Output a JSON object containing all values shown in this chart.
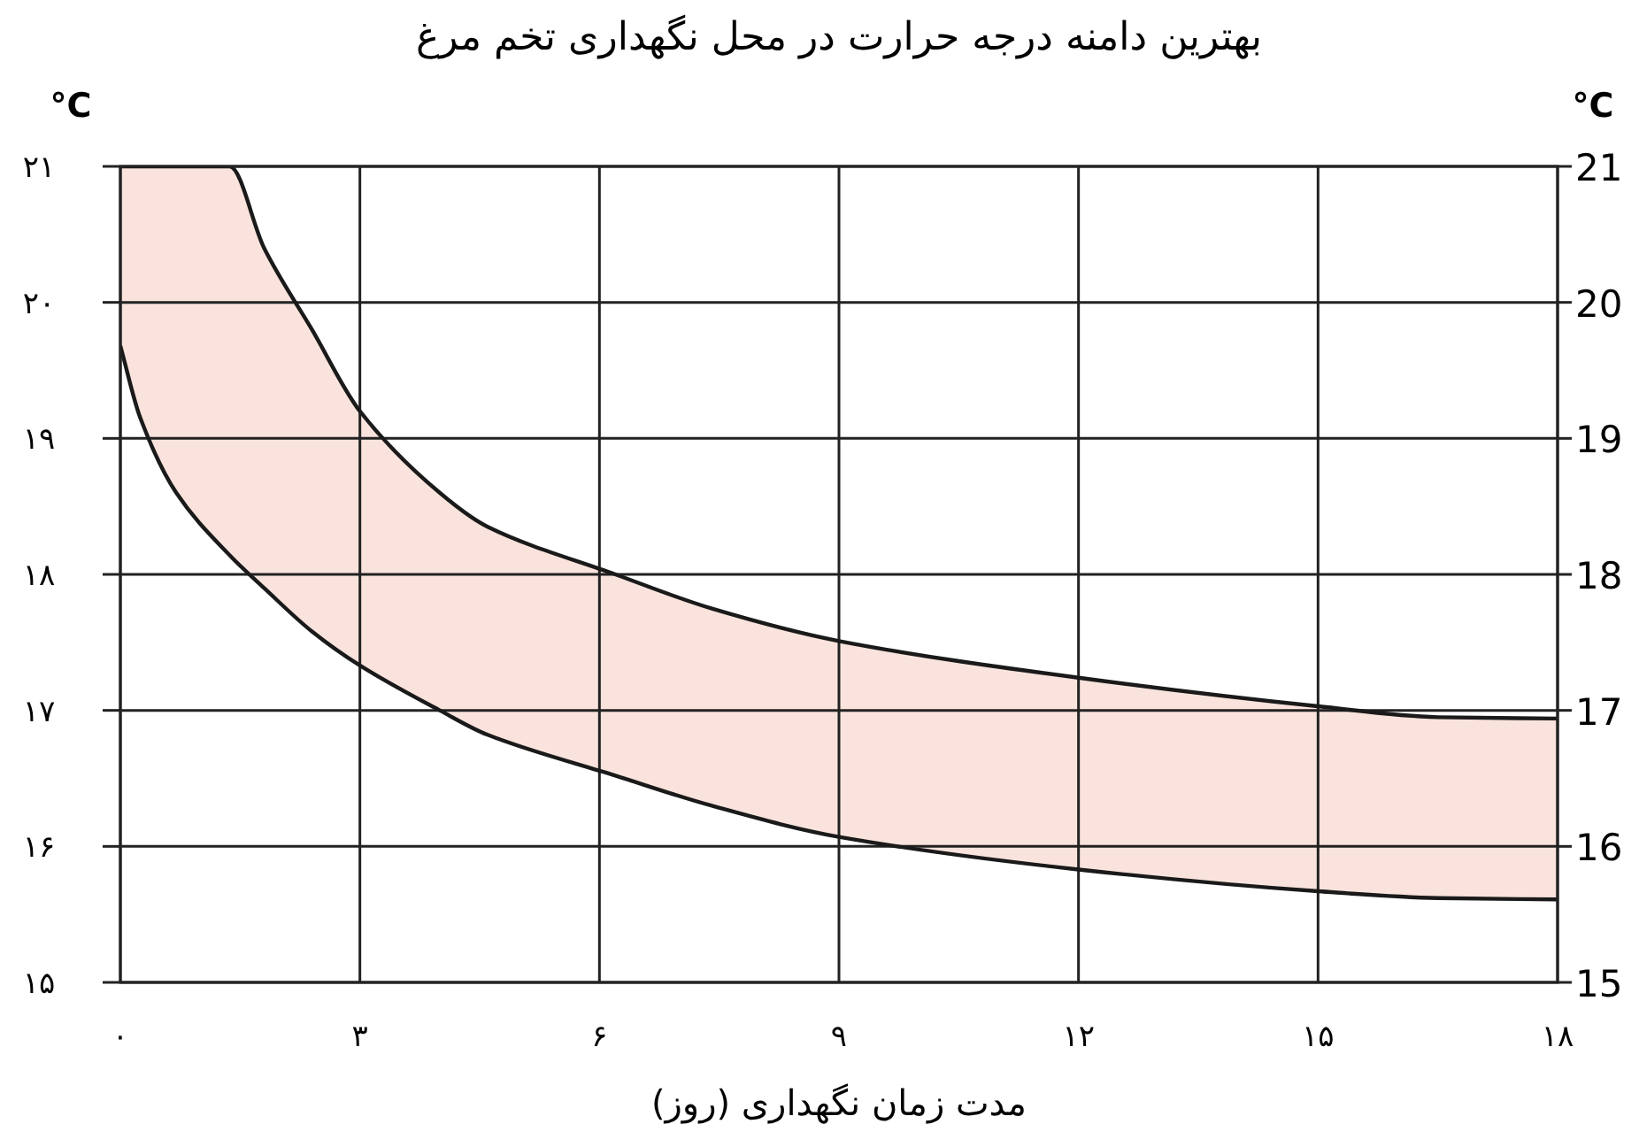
{
  "chart_data": {
    "type": "area",
    "title": "بهترین دامنه درجه حرارت در محل نگهداری تخم مرغ",
    "xlabel": "مدت زمان نگهداری (روز)",
    "ylabel": "°C",
    "y2label": "°C",
    "xlim": [
      0,
      18
    ],
    "xticks": [
      {
        "value": 0,
        "label": "۰"
      },
      {
        "value": 3,
        "label": "۳"
      },
      {
        "value": 6,
        "label": "۶"
      },
      {
        "value": 9,
        "label": "۹"
      },
      {
        "value": 12,
        "label": "۱۲"
      },
      {
        "value": 15,
        "label": "۱۵"
      },
      {
        "value": 18,
        "label": "۱۸"
      }
    ],
    "ylim": [
      15,
      21
    ],
    "yticks": [
      {
        "value": 15,
        "label": "۱۵"
      },
      {
        "value": 16,
        "label": "۱۶"
      },
      {
        "value": 17,
        "label": "۱۷"
      },
      {
        "value": 18,
        "label": "۱۸"
      },
      {
        "value": 19,
        "label": "۱۹"
      },
      {
        "value": 20,
        "label": "۲۰"
      },
      {
        "value": 21,
        "label": "۲۱"
      }
    ],
    "y2lim": [
      15,
      21
    ],
    "y2ticks": [
      15,
      16,
      17,
      18,
      19,
      20,
      21
    ],
    "grid": true,
    "x": [
      0,
      0.25,
      0.7,
      1.37,
      1.8,
      2.4,
      3,
      4,
      4.6,
      6.2,
      7.4,
      9,
      12,
      15,
      16.5,
      18
    ],
    "series": [
      {
        "color": "#f9e3dc",
        "values": [
          21,
          21,
          21,
          21,
          20.4,
          19.8,
          19.2,
          18.6,
          18.35,
          18.0,
          17.75,
          17.51,
          17.24,
          17.03,
          16.95,
          16.94
        ]
      },
      {
        "color": "#ffffff",
        "values": [
          19.68,
          19.15,
          18.6,
          18.14,
          17.9,
          17.58,
          17.33,
          17.0,
          16.82,
          16.52,
          16.3,
          16.07,
          15.83,
          15.67,
          15.62,
          15.61
        ]
      }
    ]
  }
}
